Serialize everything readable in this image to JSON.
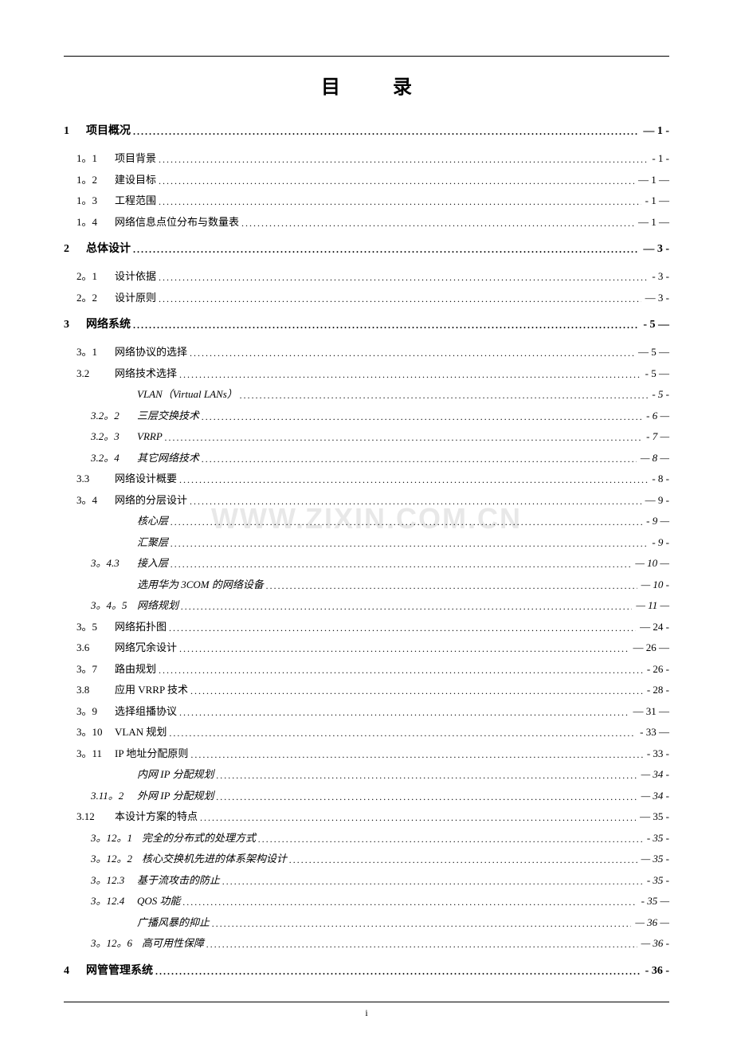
{
  "title": "目 录",
  "watermark": "WWW.ZIXIN.COM.CN",
  "footer": "i",
  "entries": [
    {
      "level": 1,
      "num": "1",
      "label": "项目概况",
      "page": "— 1 -"
    },
    {
      "level": 2,
      "num": "1。1",
      "label": "项目背景",
      "page": "- 1 -"
    },
    {
      "level": 2,
      "num": "1。2",
      "label": "建设目标",
      "page": "— 1 —"
    },
    {
      "level": 2,
      "num": "1。3",
      "label": "工程范围",
      "page": "- 1 —"
    },
    {
      "level": 2,
      "num": "1。4",
      "label": "网络信息点位分布与数量表",
      "page": "— 1 —"
    },
    {
      "level": 1,
      "num": "2",
      "label": "总体设计",
      "page": "— 3 -"
    },
    {
      "level": 2,
      "num": "2。1",
      "label": "设计依据",
      "page": "- 3 -"
    },
    {
      "level": 2,
      "num": "2。2",
      "label": "设计原则",
      "page": "— 3 -"
    },
    {
      "level": 1,
      "num": "3",
      "label": "网络系统",
      "page": "- 5 —"
    },
    {
      "level": 2,
      "num": "3。1",
      "label": "网络协议的选择",
      "page": "— 5 —"
    },
    {
      "level": 2,
      "num": "3.2",
      "label": "网络技术选择",
      "page": "- 5 —"
    },
    {
      "level": "3n",
      "num": "",
      "label": "VLAN（Virtual LANs）",
      "page": "- 5 -"
    },
    {
      "level": 3,
      "num": "3.2。2",
      "label": "三层交换技术",
      "page": "- 6 —"
    },
    {
      "level": 3,
      "num": "3.2。3",
      "label": "VRRP",
      "page": "- 7 —"
    },
    {
      "level": 3,
      "num": "3.2。4",
      "label": "其它网络技术",
      "page": "— 8 —"
    },
    {
      "level": 2,
      "num": "3.3",
      "label": "网络设计概要",
      "page": "- 8 -"
    },
    {
      "level": 2,
      "num": "3。4",
      "label": "网络的分层设计",
      "page": "— 9 -"
    },
    {
      "level": "3n",
      "num": "",
      "label": "核心层",
      "page": "- 9 —"
    },
    {
      "level": "3n",
      "num": "",
      "label": "汇聚层",
      "page": "- 9 -"
    },
    {
      "level": 3,
      "num": "3。4.3",
      "label": "接入层",
      "page": "— 10 —"
    },
    {
      "level": "3n",
      "num": "",
      "label": "选用华为 3COM 的网络设备",
      "page": "— 10 -"
    },
    {
      "level": 3,
      "num": "3。4。5",
      "label": "网络规划",
      "page": "— 11 —"
    },
    {
      "level": 2,
      "num": "3。5",
      "label": "网络拓扑图",
      "page": "— 24 -"
    },
    {
      "level": 2,
      "num": "3.6",
      "label": "网络冗余设计",
      "page": "— 26 —"
    },
    {
      "level": 2,
      "num": "3。7",
      "label": "路由规划",
      "page": "- 26 -"
    },
    {
      "level": 2,
      "num": "3.8",
      "label": "应用 VRRP 技术",
      "page": "- 28 -"
    },
    {
      "level": 2,
      "num": "3。9",
      "label": "选择组播协议",
      "page": "— 31 —"
    },
    {
      "level": 2,
      "num": "3。10",
      "label": "VLAN 规划",
      "page": "- 33 —"
    },
    {
      "level": 2,
      "num": "3。11",
      "label": "IP 地址分配原则",
      "page": "- 33 -"
    },
    {
      "level": "3n",
      "num": "",
      "label": "内网 IP 分配规划",
      "page": "— 34 -"
    },
    {
      "level": 3,
      "num": "3.11。2",
      "label": "外网 IP 分配规划",
      "page": "— 34 -"
    },
    {
      "level": 2,
      "num": "3.12",
      "label": "本设计方案的特点",
      "page": "— 35 -"
    },
    {
      "level": 3,
      "num": "3。12。1",
      "label": "完全的分布式的处理方式",
      "page": "- 35 -"
    },
    {
      "level": 3,
      "num": "3。12。2",
      "label": "核心交换机先进的体系架构设计",
      "page": "— 35 -"
    },
    {
      "level": 3,
      "num": "3。12.3",
      "label": "基于流攻击的防止",
      "page": "- 35 -"
    },
    {
      "level": 3,
      "num": "3。12.4",
      "label": "QOS 功能",
      "page": "- 35 —"
    },
    {
      "level": "3n",
      "num": "",
      "label": "广播风暴的抑止",
      "page": "— 36 —"
    },
    {
      "level": 3,
      "num": "3。12。6",
      "label": "高可用性保障",
      "page": "— 36 -"
    },
    {
      "level": 1,
      "num": "4",
      "label": "网管管理系统",
      "page": "- 36 -"
    }
  ]
}
